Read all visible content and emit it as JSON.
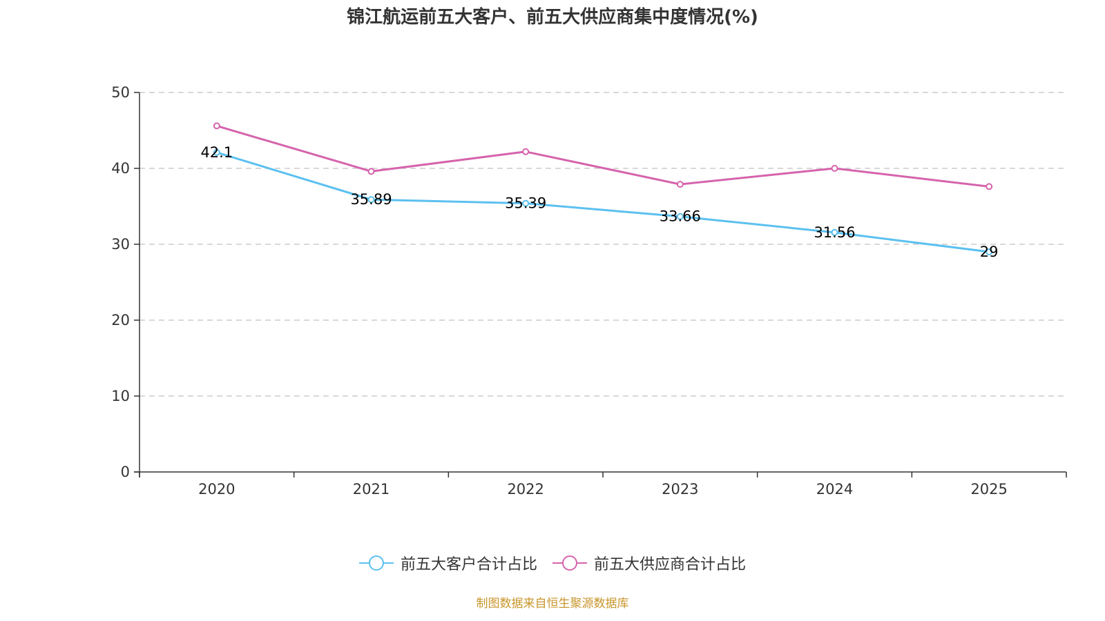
{
  "chart_data": {
    "type": "line",
    "title": "锦江航运前五大客户、前五大供应商集中度情况(%)",
    "xlabel": "",
    "ylabel": "",
    "categories": [
      "2020",
      "2021",
      "2022",
      "2023",
      "2024",
      "2025"
    ],
    "ylim": [
      0,
      50
    ],
    "yticks": [
      0,
      10,
      20,
      30,
      40,
      50
    ],
    "grid": true,
    "legend_position": "bottom",
    "series": [
      {
        "name": "前五大客户合计占比",
        "color": "#5bc0f0",
        "values": [
          42.1,
          35.89,
          35.39,
          33.66,
          31.56,
          29
        ],
        "show_labels": true
      },
      {
        "name": "前五大供应商合计占比",
        "color": "#d563ac",
        "values": [
          45.6,
          39.6,
          42.2,
          37.9,
          40.0,
          37.6
        ],
        "show_labels": false
      }
    ],
    "source": "制图数据来自恒生聚源数据库"
  }
}
